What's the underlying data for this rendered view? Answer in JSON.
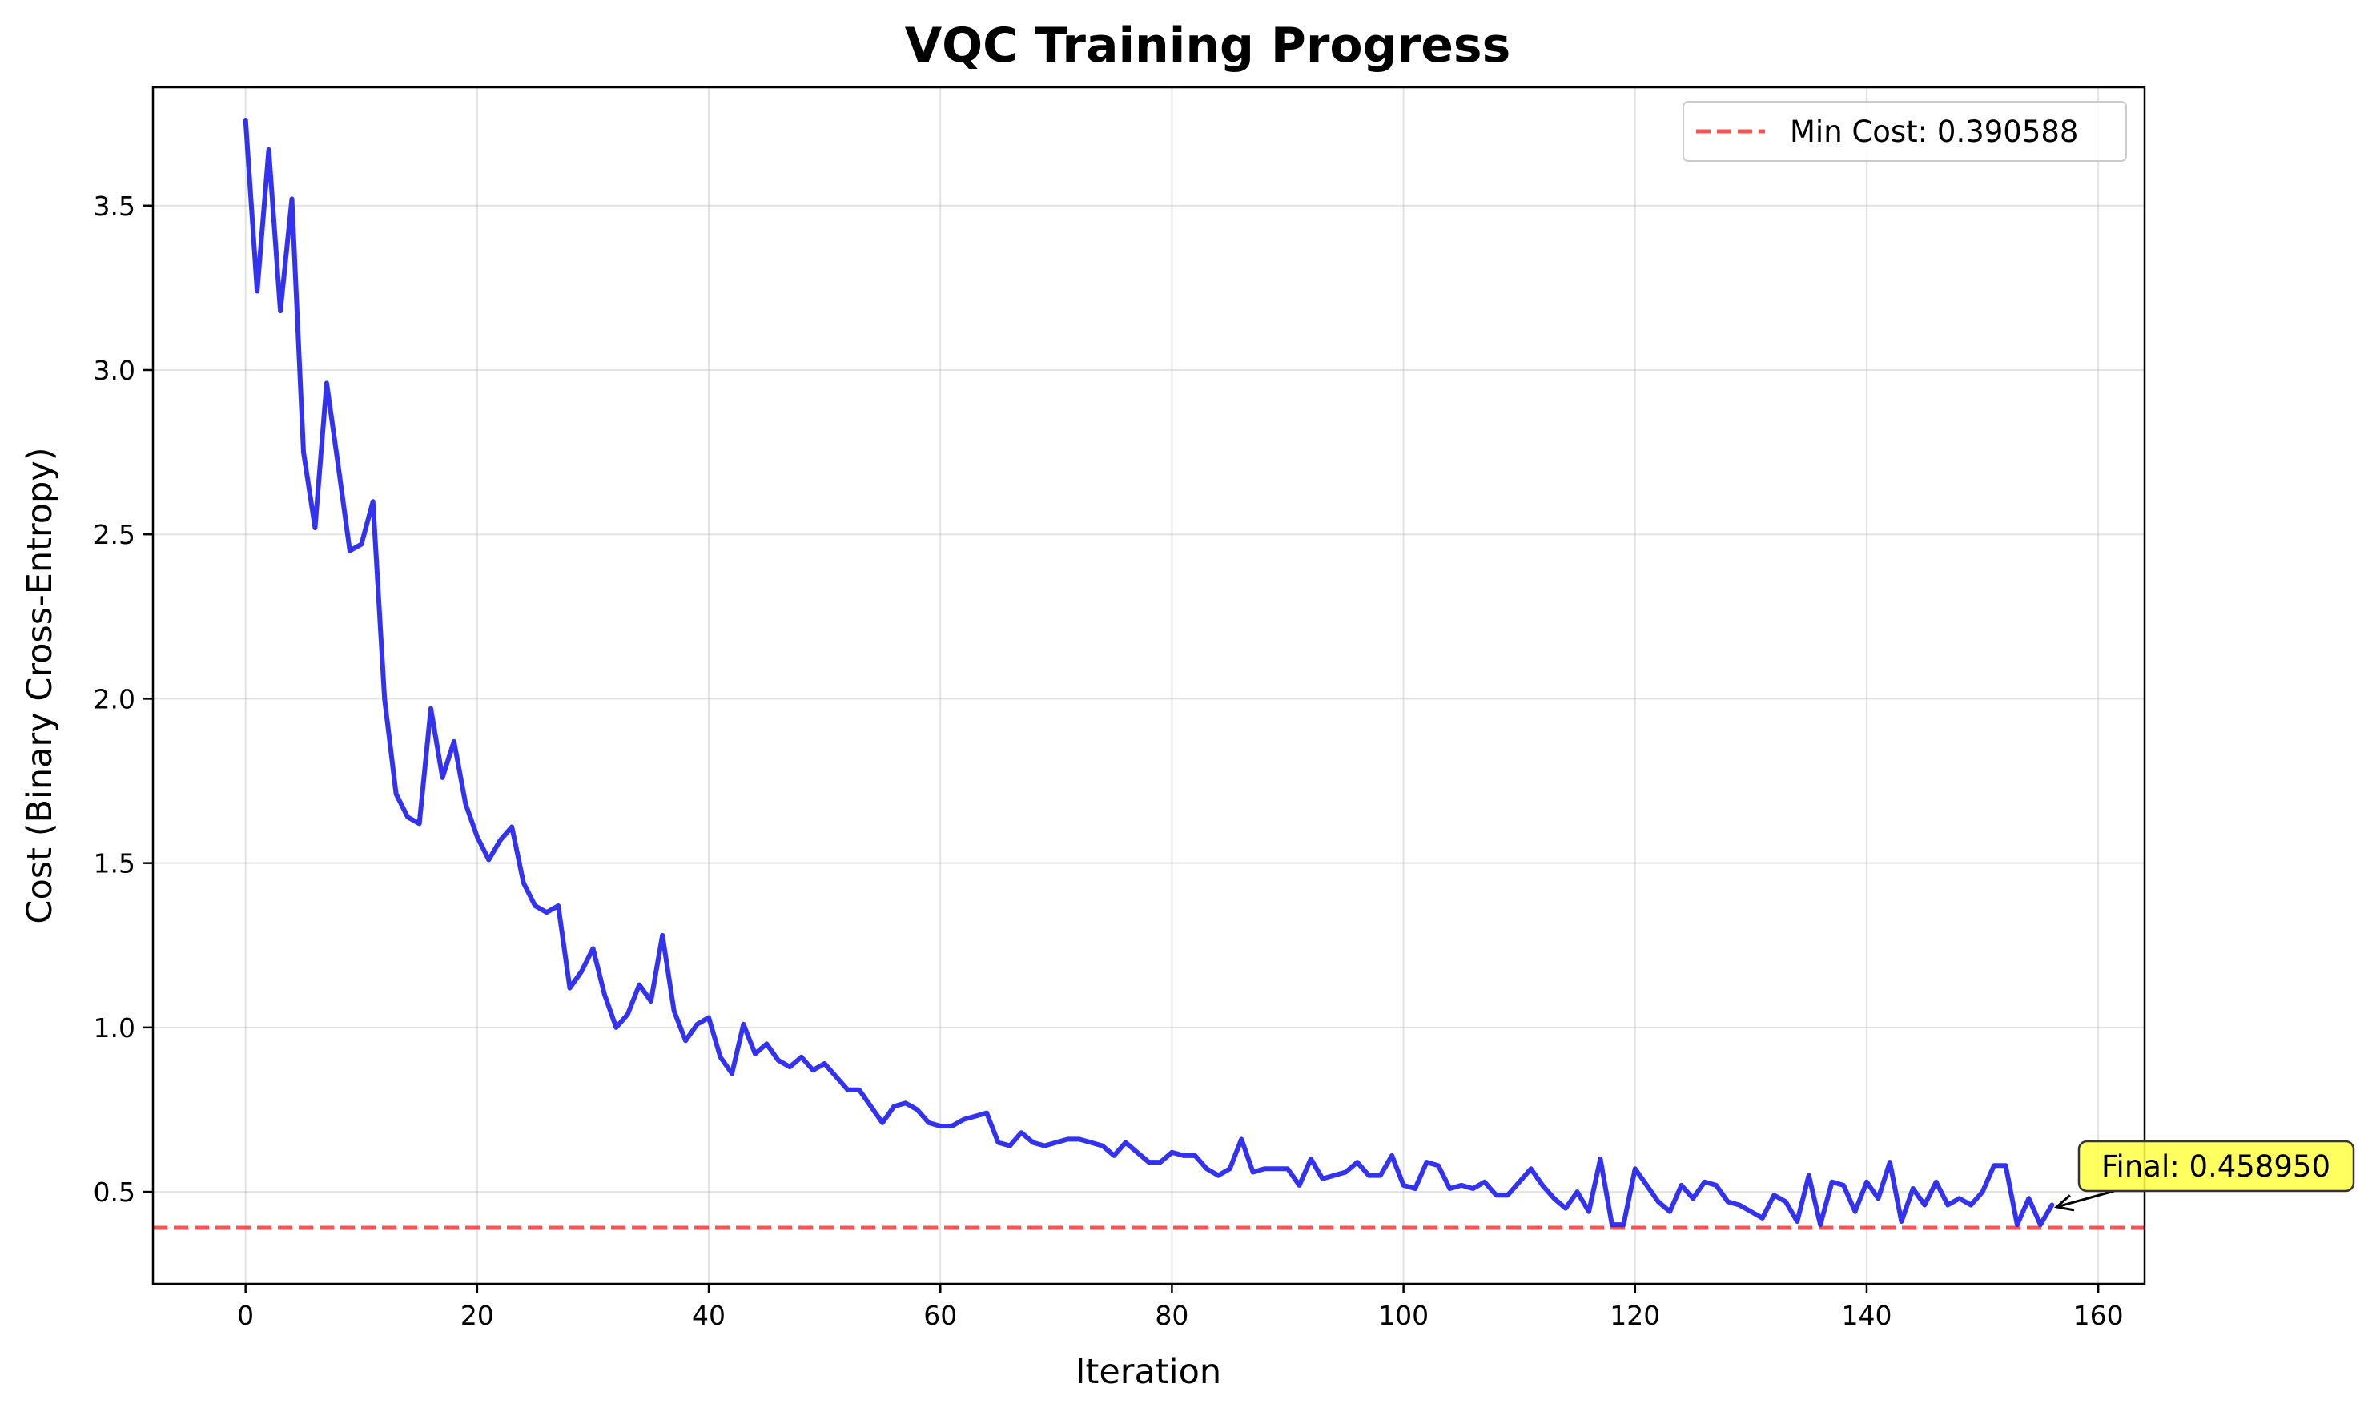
{
  "chart_data": {
    "type": "line",
    "title": "VQC Training Progress",
    "xlabel": "Iteration",
    "ylabel": "Cost (Binary Cross-Entropy)",
    "xlim": [
      -8,
      164
    ],
    "ylim": [
      0.22,
      3.86
    ],
    "xticks": [
      0,
      20,
      40,
      60,
      80,
      100,
      120,
      140,
      160
    ],
    "yticks": [
      0.5,
      1.0,
      1.5,
      2.0,
      2.5,
      3.0,
      3.5
    ],
    "grid": true,
    "legend_position": "top-right",
    "legend_label": "Min Cost: 0.390588",
    "series": [
      {
        "color": "#2222ee",
        "x": [
          0,
          1,
          2,
          3,
          4,
          5,
          6,
          7,
          8,
          9,
          10,
          11,
          12,
          13,
          14,
          15,
          16,
          17,
          18,
          19,
          20,
          21,
          22,
          23,
          24,
          25,
          26,
          27,
          28,
          29,
          30,
          31,
          32,
          33,
          34,
          35,
          36,
          37,
          38,
          39,
          40,
          41,
          42,
          43,
          44,
          45,
          46,
          47,
          48,
          49,
          50,
          51,
          52,
          53,
          54,
          55,
          56,
          57,
          58,
          59,
          60,
          61,
          62,
          63,
          64,
          65,
          66,
          67,
          68,
          69,
          70,
          71,
          72,
          73,
          74,
          75,
          76,
          77,
          78,
          79,
          80,
          81,
          82,
          83,
          84,
          85,
          86,
          87,
          88,
          89,
          90,
          91,
          92,
          93,
          94,
          95,
          96,
          97,
          98,
          99,
          100,
          101,
          102,
          103,
          104,
          105,
          106,
          107,
          108,
          109,
          110,
          111,
          112,
          113,
          114,
          115,
          116,
          117,
          118,
          119,
          120,
          121,
          122,
          123,
          124,
          125,
          126,
          127,
          128,
          129,
          130,
          131,
          132,
          133,
          134,
          135,
          136,
          137,
          138,
          139,
          140,
          141,
          142,
          143,
          144,
          145,
          146,
          147,
          148,
          149,
          150,
          151,
          152,
          153,
          154,
          155,
          156
        ],
        "y": [
          3.76,
          3.24,
          3.67,
          3.18,
          3.52,
          2.75,
          2.52,
          2.96,
          2.71,
          2.45,
          2.47,
          2.6,
          2.0,
          1.71,
          1.64,
          1.62,
          1.97,
          1.76,
          1.87,
          1.68,
          1.58,
          1.51,
          1.57,
          1.61,
          1.44,
          1.37,
          1.35,
          1.37,
          1.12,
          1.17,
          1.24,
          1.1,
          1.0,
          1.04,
          1.13,
          1.08,
          1.28,
          1.05,
          0.96,
          1.01,
          1.03,
          0.91,
          0.86,
          1.01,
          0.92,
          0.95,
          0.9,
          0.88,
          0.91,
          0.87,
          0.89,
          0.85,
          0.81,
          0.81,
          0.76,
          0.71,
          0.76,
          0.77,
          0.75,
          0.71,
          0.7,
          0.7,
          0.72,
          0.73,
          0.74,
          0.65,
          0.64,
          0.68,
          0.65,
          0.64,
          0.65,
          0.66,
          0.66,
          0.65,
          0.64,
          0.61,
          0.65,
          0.62,
          0.59,
          0.59,
          0.62,
          0.61,
          0.61,
          0.57,
          0.55,
          0.57,
          0.66,
          0.56,
          0.57,
          0.57,
          0.57,
          0.52,
          0.6,
          0.54,
          0.55,
          0.56,
          0.59,
          0.55,
          0.55,
          0.61,
          0.52,
          0.51,
          0.59,
          0.58,
          0.51,
          0.52,
          0.51,
          0.53,
          0.49,
          0.49,
          0.53,
          0.57,
          0.52,
          0.48,
          0.45,
          0.5,
          0.44,
          0.6,
          0.4,
          0.4,
          0.57,
          0.52,
          0.47,
          0.44,
          0.52,
          0.48,
          0.53,
          0.52,
          0.47,
          0.46,
          0.44,
          0.42,
          0.49,
          0.47,
          0.41,
          0.55,
          0.4,
          0.53,
          0.52,
          0.44,
          0.53,
          0.48,
          0.59,
          0.41,
          0.51,
          0.46,
          0.53,
          0.46,
          0.48,
          0.46,
          0.5,
          0.58,
          0.58,
          0.4,
          0.48,
          0.4,
          0.46
        ]
      }
    ],
    "hline": {
      "y": 0.390588,
      "color": "#ff3333",
      "style": "dashed"
    },
    "annotation": {
      "text": "Final: 0.458950",
      "point": [
        156,
        0.45895
      ],
      "box_color": "#ffff44"
    }
  }
}
